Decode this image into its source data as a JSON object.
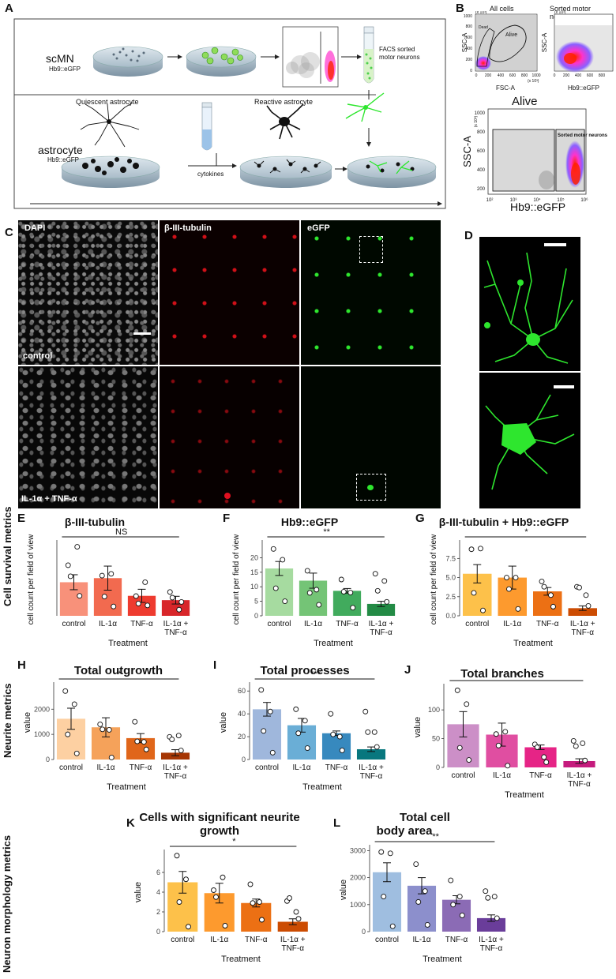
{
  "panel_letters": [
    "A",
    "B",
    "C",
    "D",
    "E",
    "F",
    "G",
    "H",
    "I",
    "J",
    "K",
    "L"
  ],
  "section_labels": {
    "survival": "Cell survival metrics",
    "neurite": "Neurite metrics",
    "morphology": "Neuron morphology metrics"
  },
  "panelA": {
    "scmn": "scMN",
    "scmn_sub": "Hb9::eGFP",
    "astro": "astrocyte",
    "astro_sub": "Hb9::eGFP",
    "quiescent": "Quiescent astrocyte",
    "reactive": "Reactive astrocyte",
    "cytokines": "cytokines",
    "facs": "FACS sorted motor neurons"
  },
  "panelB": {
    "all_cells": "All cells",
    "sorted": "Sorted motor neurons",
    "alive": "Alive",
    "dead_gate": "Dead",
    "alive_gate": "Alive",
    "sorted_gate": "Sorted motor neurons",
    "ssc": "SSC-A",
    "fsc": "FSC-A",
    "hb9": "Hb9::eGFP",
    "mult": "(x 10³)",
    "ticks_small": [
      "0",
      "200",
      "400",
      "600",
      "800",
      "1000"
    ],
    "yticks_big": [
      "200",
      "400",
      "600",
      "800",
      "1000"
    ],
    "xticks_big": [
      "10²",
      "10³",
      "10⁴",
      "10⁵",
      "10⁶"
    ]
  },
  "panelC": {
    "dapi": "DAPI",
    "tubulin": "β-III-tubulin",
    "egfp": "eGFP",
    "control": "control",
    "treated": "IL-1α + TNF-α"
  },
  "colors": {
    "E": [
      "#f8917a",
      "#f26a4f",
      "#ee3b2f",
      "#d8262a"
    ],
    "F": [
      "#a6dba0",
      "#74c476",
      "#41ab5d",
      "#238b45"
    ],
    "G": [
      "#fdc14a",
      "#fd9a2e",
      "#ec7014",
      "#cc4c02"
    ],
    "H": [
      "#fdd0a2",
      "#f5a25a",
      "#e0661a",
      "#a63603"
    ],
    "I": [
      "#9fb7dc",
      "#6aaed6",
      "#3789be",
      "#08777e"
    ],
    "J": [
      "#cc8fc7",
      "#e04ea1",
      "#e62486",
      "#c51b7d"
    ],
    "K": [
      "#fdc14a",
      "#fd9a2e",
      "#ec7014",
      "#cc4c02"
    ],
    "L": [
      "#9fbee0",
      "#8c8fcc",
      "#8b6bb5",
      "#6a3d9a"
    ]
  },
  "chart_data": [
    {
      "id": "E",
      "type": "bar",
      "title": "β-III-tubulin",
      "ylabel": "cell count per field of view",
      "xlabel": "Treatment",
      "categories": [
        "control",
        "IL-1α",
        "TNF-α",
        "IL-1α + TNF-α"
      ],
      "values": [
        14.8,
        16.6,
        8.8,
        6.9
      ],
      "errors": [
        3.3,
        5.3,
        2.9,
        1.7
      ],
      "points": [
        [
          22.3,
          17.7,
          8.7,
          10.5
        ],
        [
          30.4,
          18.5,
          14.8,
          2.7
        ],
        [
          17.4,
          8.5,
          5.4,
          8.0
        ],
        [
          8.8,
          4.1,
          4.6,
          6.1
        ]
      ],
      "ylim": [
        0,
        32
      ],
      "yticks": [],
      "significance": "NS"
    },
    {
      "id": "F",
      "type": "bar",
      "title": "Hb9::eGFP",
      "ylabel": "cell count per field of view",
      "xlabel": "Treatment",
      "categories": [
        "control",
        "IL-1α",
        "TNF-α",
        "IL-1α + TNF-α"
      ],
      "values": [
        16.3,
        12.1,
        8.6,
        4.1
      ],
      "errors": [
        2.4,
        2.6,
        0.8,
        0.9
      ],
      "points": [
        [
          23.0,
          15.5,
          12.5,
          14.5
        ],
        [
          19.3,
          9.0,
          8.0,
          12.0
        ],
        [
          9.5,
          7.9,
          8.3,
          8.6
        ],
        [
          5.0,
          3.8,
          2.8,
          4.8
        ]
      ],
      "ylim": [
        0,
        25
      ],
      "yticks": [
        "0",
        "5",
        "10",
        "15",
        "20"
      ],
      "yticks_values": [
        0,
        5,
        10,
        15,
        20
      ],
      "significance": "**"
    },
    {
      "id": "G",
      "type": "bar",
      "title": "β-III-tubulin + Hb9::eGFP",
      "ylabel": "cell count per field of view",
      "xlabel": "Treatment",
      "categories": [
        "control",
        "IL-1α",
        "TNF-α",
        "IL-1α + TNF-α"
      ],
      "values": [
        5.5,
        5.0,
        3.2,
        1.0
      ],
      "errors": [
        1.2,
        1.5,
        0.5,
        0.3
      ],
      "points": [
        [
          8.7,
          5.0,
          4.5,
          3.8
        ],
        [
          8.8,
          5.0,
          2.7,
          2.7
        ],
        [
          3.0,
          3.5,
          3.8,
          3.7
        ],
        [
          0.7,
          0.9,
          1.2,
          1.3
        ]
      ],
      "ylim": [
        0,
        9.5
      ],
      "yticks": [
        "0.0",
        "2.5",
        "5.0",
        "7.5"
      ],
      "yticks_values": [
        0,
        2.5,
        5,
        7.5
      ],
      "significance": "*"
    },
    {
      "id": "H",
      "type": "bar",
      "title": "Total outgrowth",
      "ylabel": "value",
      "xlabel": "Treatment",
      "categories": [
        "control",
        "IL-1α",
        "TNF-α",
        "IL-1α + TNF-α"
      ],
      "values": [
        1620,
        1280,
        850,
        270
      ],
      "errors": [
        420,
        380,
        180,
        120
      ],
      "points": [
        [
          2720,
          1400,
          1500,
          900
        ],
        [
          2200,
          1180,
          700,
          950
        ],
        [
          1000,
          1200,
          720,
          800
        ],
        [
          240,
          80,
          400,
          360
        ]
      ],
      "ylim": [
        0,
        2950
      ],
      "yticks": [
        "0",
        "1000",
        "2000"
      ],
      "yticks_values": [
        0,
        1000,
        2000
      ],
      "significance": "*"
    },
    {
      "id": "I",
      "type": "bar",
      "title": "Total processes",
      "ylabel": "value",
      "xlabel": "Treatment",
      "categories": [
        "control",
        "IL-1α",
        "TNF-α",
        "IL-1α + TNF-α"
      ],
      "values": [
        44,
        30,
        23,
        9
      ],
      "errors": [
        6,
        6,
        2,
        2
      ],
      "points": [
        [
          61,
          44,
          40,
          42
        ],
        [
          42,
          34,
          20,
          24
        ],
        [
          25,
          23,
          22,
          24
        ],
        [
          6,
          10,
          8,
          11
        ]
      ],
      "ylim": [
        0,
        65
      ],
      "yticks": [
        "0",
        "20",
        "40",
        "60"
      ],
      "yticks_values": [
        0,
        20,
        40,
        60
      ],
      "significance": "***"
    },
    {
      "id": "J",
      "type": "bar",
      "title": "Total branches",
      "ylabel": "value",
      "xlabel": "Treatment",
      "categories": [
        "control",
        "IL-1α",
        "TNF-α",
        "IL-1α + TNF-α"
      ],
      "values": [
        75,
        57,
        35,
        11
      ],
      "errors": [
        22,
        20,
        4,
        4
      ],
      "points": [
        [
          134,
          58,
          40,
          46
        ],
        [
          110,
          62,
          18,
          42
        ],
        [
          34,
          38,
          35,
          37
        ],
        [
          13,
          3,
          9,
          12
        ]
      ],
      "ylim": [
        0,
        140
      ],
      "yticks": [
        "0",
        "50",
        "100"
      ],
      "yticks_values": [
        0,
        50,
        100
      ],
      "significance": "*"
    },
    {
      "id": "K",
      "type": "bar",
      "title": "Cells with significant neurite growth",
      "ylabel": "value",
      "xlabel": "Treatment",
      "categories": [
        "control",
        "IL-1α",
        "TNF-α",
        "IL-1α + TNF-α"
      ],
      "values": [
        5.0,
        3.9,
        2.9,
        1.0
      ],
      "errors": [
        1.1,
        1.0,
        0.4,
        0.3
      ],
      "points": [
        [
          7.7,
          4.2,
          4.8,
          3.1
        ],
        [
          5.3,
          5.5,
          3.0,
          2.0
        ],
        [
          3.0,
          3.5,
          2.9,
          3.4
        ],
        [
          0.5,
          0.6,
          1.2,
          1.3
        ]
      ],
      "ylim": [
        0,
        8
      ],
      "yticks": [
        "0",
        "2",
        "4",
        "6"
      ],
      "yticks_values": [
        0,
        2,
        4,
        6
      ],
      "significance": "*"
    },
    {
      "id": "L",
      "type": "bar",
      "title": "Total cell body area",
      "ylabel": "value",
      "xlabel": "Treatment",
      "categories": [
        "control",
        "IL-1α",
        "TNF-α",
        "IL-1α + TNF-α"
      ],
      "values": [
        2200,
        1700,
        1180,
        500
      ],
      "errors": [
        350,
        300,
        150,
        120
      ],
      "points": [
        [
          2950,
          2500,
          1900,
          1500
        ],
        [
          2900,
          1500,
          1300,
          1300
        ],
        [
          1300,
          1100,
          1000,
          1250
        ],
        [
          200,
          250,
          600,
          500
        ]
      ],
      "ylim": [
        0,
        3100
      ],
      "yticks": [
        "0",
        "1000",
        "2000",
        "3000"
      ],
      "yticks_values": [
        0,
        1000,
        2000,
        3000
      ],
      "significance": "**"
    }
  ]
}
